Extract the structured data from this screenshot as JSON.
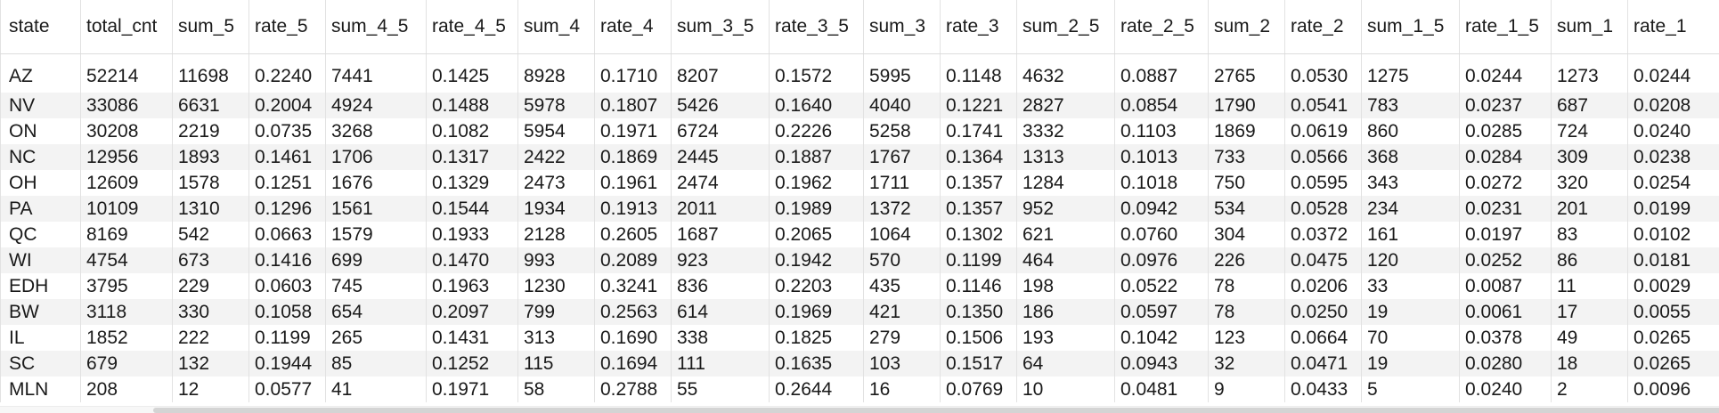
{
  "grid": {
    "columns": [
      "state",
      "total_cnt",
      "sum_5",
      "rate_5",
      "sum_4_5",
      "rate_4_5",
      "sum_4",
      "rate_4",
      "sum_3_5",
      "rate_3_5",
      "sum_3",
      "rate_3",
      "sum_2_5",
      "rate_2_5",
      "sum_2",
      "rate_2",
      "sum_1_5",
      "rate_1_5",
      "sum_1",
      "rate_1"
    ],
    "rows": [
      [
        "AZ",
        "52214",
        "11698",
        "0.2240",
        "7441",
        "0.1425",
        "8928",
        "0.1710",
        "8207",
        "0.1572",
        "5995",
        "0.1148",
        "4632",
        "0.0887",
        "2765",
        "0.0530",
        "1275",
        "0.0244",
        "1273",
        "0.0244"
      ],
      [
        "NV",
        "33086",
        "6631",
        "0.2004",
        "4924",
        "0.1488",
        "5978",
        "0.1807",
        "5426",
        "0.1640",
        "4040",
        "0.1221",
        "2827",
        "0.0854",
        "1790",
        "0.0541",
        "783",
        "0.0237",
        "687",
        "0.0208"
      ],
      [
        "ON",
        "30208",
        "2219",
        "0.0735",
        "3268",
        "0.1082",
        "5954",
        "0.1971",
        "6724",
        "0.2226",
        "5258",
        "0.1741",
        "3332",
        "0.1103",
        "1869",
        "0.0619",
        "860",
        "0.0285",
        "724",
        "0.0240"
      ],
      [
        "NC",
        "12956",
        "1893",
        "0.1461",
        "1706",
        "0.1317",
        "2422",
        "0.1869",
        "2445",
        "0.1887",
        "1767",
        "0.1364",
        "1313",
        "0.1013",
        "733",
        "0.0566",
        "368",
        "0.0284",
        "309",
        "0.0238"
      ],
      [
        "OH",
        "12609",
        "1578",
        "0.1251",
        "1676",
        "0.1329",
        "2473",
        "0.1961",
        "2474",
        "0.1962",
        "1711",
        "0.1357",
        "1284",
        "0.1018",
        "750",
        "0.0595",
        "343",
        "0.0272",
        "320",
        "0.0254"
      ],
      [
        "PA",
        "10109",
        "1310",
        "0.1296",
        "1561",
        "0.1544",
        "1934",
        "0.1913",
        "2011",
        "0.1989",
        "1372",
        "0.1357",
        "952",
        "0.0942",
        "534",
        "0.0528",
        "234",
        "0.0231",
        "201",
        "0.0199"
      ],
      [
        "QC",
        "8169",
        "542",
        "0.0663",
        "1579",
        "0.1933",
        "2128",
        "0.2605",
        "1687",
        "0.2065",
        "1064",
        "0.1302",
        "621",
        "0.0760",
        "304",
        "0.0372",
        "161",
        "0.0197",
        "83",
        "0.0102"
      ],
      [
        "WI",
        "4754",
        "673",
        "0.1416",
        "699",
        "0.1470",
        "993",
        "0.2089",
        "923",
        "0.1942",
        "570",
        "0.1199",
        "464",
        "0.0976",
        "226",
        "0.0475",
        "120",
        "0.0252",
        "86",
        "0.0181"
      ],
      [
        "EDH",
        "3795",
        "229",
        "0.0603",
        "745",
        "0.1963",
        "1230",
        "0.3241",
        "836",
        "0.2203",
        "435",
        "0.1146",
        "198",
        "0.0522",
        "78",
        "0.0206",
        "33",
        "0.0087",
        "11",
        "0.0029"
      ],
      [
        "BW",
        "3118",
        "330",
        "0.1058",
        "654",
        "0.2097",
        "799",
        "0.2563",
        "614",
        "0.1969",
        "421",
        "0.1350",
        "186",
        "0.0597",
        "78",
        "0.0250",
        "19",
        "0.0061",
        "17",
        "0.0055"
      ],
      [
        "IL",
        "1852",
        "222",
        "0.1199",
        "265",
        "0.1431",
        "313",
        "0.1690",
        "338",
        "0.1825",
        "279",
        "0.1506",
        "193",
        "0.1042",
        "123",
        "0.0664",
        "70",
        "0.0378",
        "49",
        "0.0265"
      ],
      [
        "SC",
        "679",
        "132",
        "0.1944",
        "85",
        "0.1252",
        "115",
        "0.1694",
        "111",
        "0.1635",
        "103",
        "0.1517",
        "64",
        "0.0943",
        "32",
        "0.0471",
        "19",
        "0.0280",
        "18",
        "0.0265"
      ],
      [
        "MLN",
        "208",
        "12",
        "0.0577",
        "41",
        "0.1971",
        "58",
        "0.2788",
        "55",
        "0.2644",
        "16",
        "0.0769",
        "10",
        "0.0481",
        "9",
        "0.0433",
        "5",
        "0.0240",
        "2",
        "0.0096"
      ]
    ]
  },
  "colors": {
    "stripe": "#f3f3f3",
    "border": "#e2e2e2",
    "scrollbar_thumb": "#d4d4d4"
  }
}
